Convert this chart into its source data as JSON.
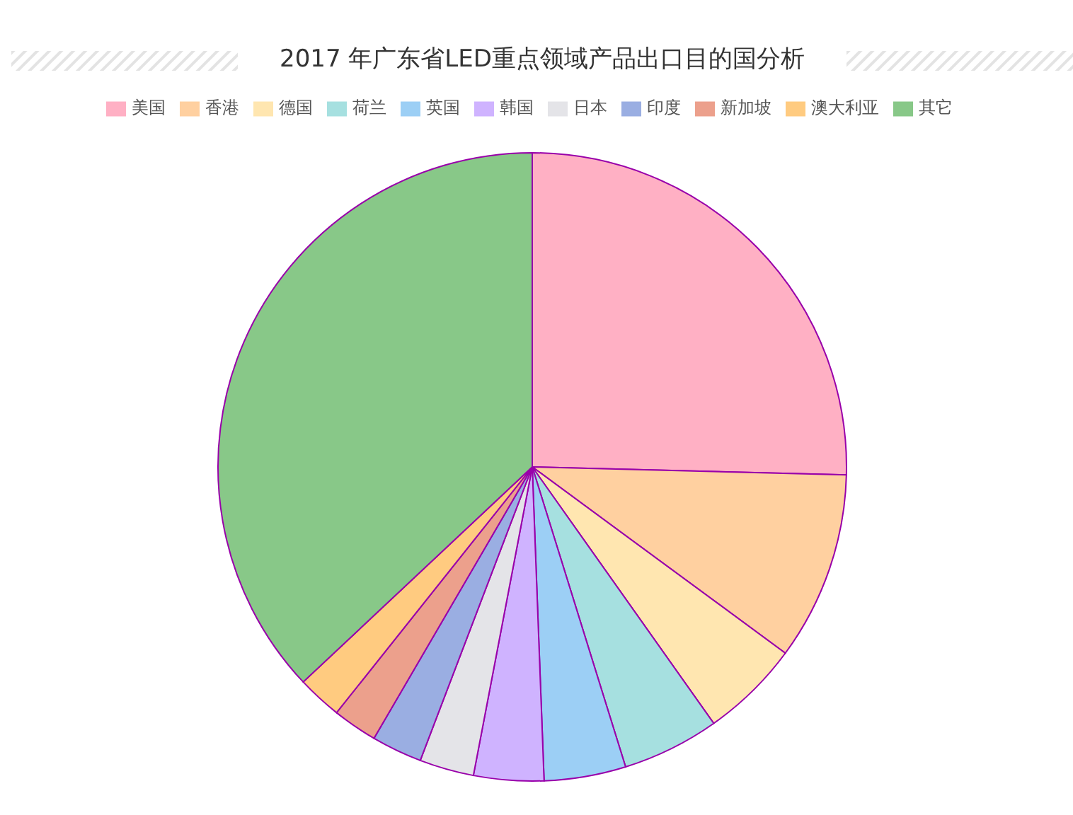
{
  "chart_data": {
    "type": "pie",
    "title": "2017 年广东省LED重点领域产品出口目的国分析",
    "categories": [
      "美国",
      "香港",
      "德国",
      "荷兰",
      "英国",
      "韩国",
      "日本",
      "印度",
      "新加坡",
      "澳大利亚",
      "其它"
    ],
    "values": [
      25.4,
      9.7,
      5.1,
      5.0,
      4.2,
      3.6,
      2.8,
      2.6,
      2.3,
      2.3,
      37.0
    ],
    "colors": [
      "#ffb0c4",
      "#ffd0a0",
      "#ffe6b0",
      "#a6e0e0",
      "#9ccff5",
      "#cfb3ff",
      "#e4e4e8",
      "#9aaee2",
      "#eca08c",
      "#ffcb80",
      "#88c888"
    ],
    "legend": "top"
  }
}
